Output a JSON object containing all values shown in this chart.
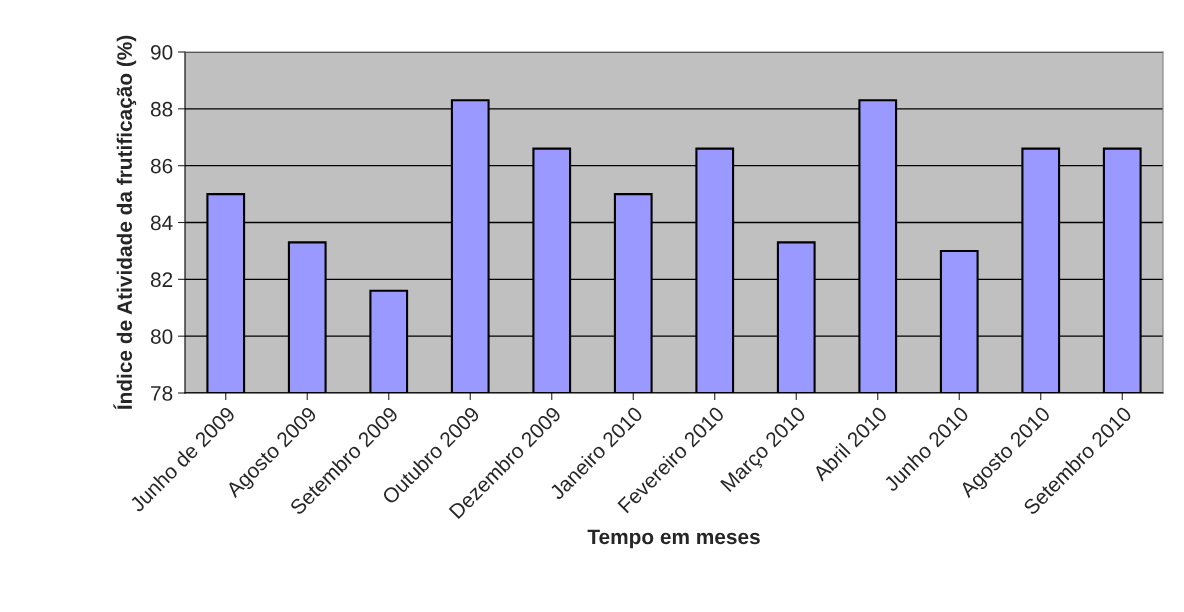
{
  "chart_data": {
    "type": "bar",
    "xlabel": "Tempo em meses",
    "ylabel": "Índice de Atividade da frutificação (%)",
    "categories": [
      "Junho de 2009",
      "Agosto 2009",
      "Setembro 2009",
      "Outubro 2009",
      "Dezembro 2009",
      "Janeiro 2010",
      "Fevereiro 2010",
      "Março 2010",
      "Abril 2010",
      "Junho 2010",
      "Agosto 2010",
      "Setembro 2010"
    ],
    "values": [
      85.0,
      83.3,
      81.6,
      88.3,
      86.6,
      85.0,
      86.6,
      83.3,
      88.3,
      83.0,
      86.6,
      86.6
    ],
    "color": "#9999ff",
    "ylim": [
      78,
      90
    ],
    "yticks": [
      78,
      80,
      82,
      84,
      86,
      88,
      90
    ],
    "grid": "y"
  }
}
